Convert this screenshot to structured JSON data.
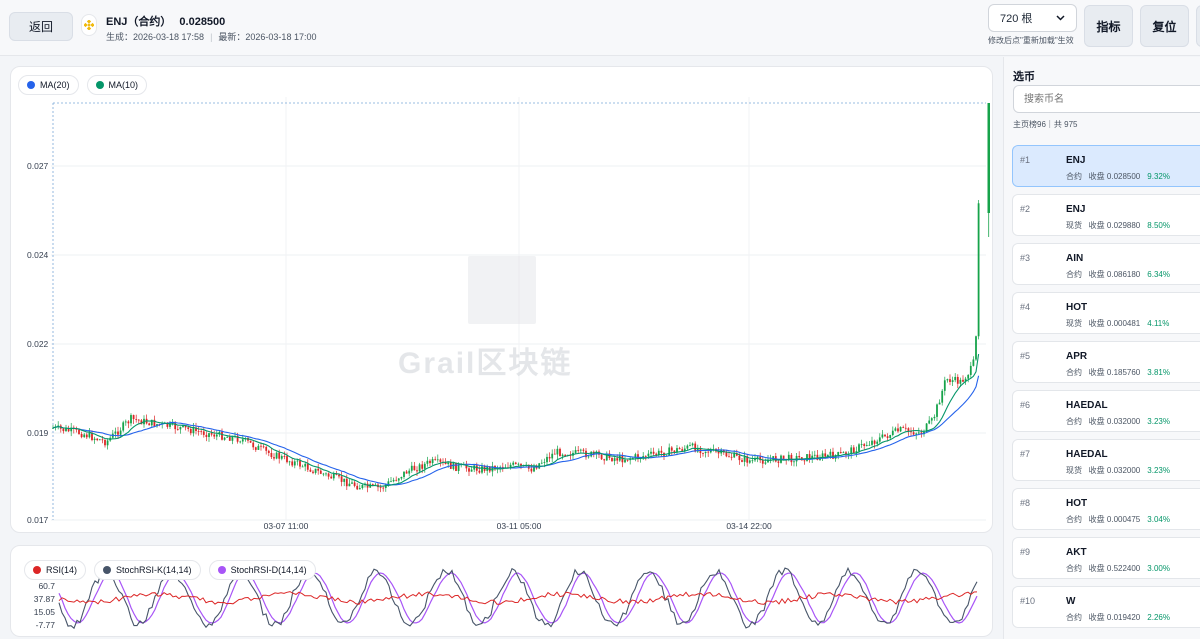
{
  "header": {
    "back_label": "返回",
    "coin_title": "ENJ（合约）",
    "coin_price": "0.028500",
    "generated": "生成：2026-03-18 17:58",
    "latest": "最新：2026-03-18 17:00",
    "bars_value": "720 根",
    "bars_hint": "修改后点\"重新加载\"生效",
    "indicator_label": "指标",
    "reset_label": "复位"
  },
  "main_chart": {
    "legend": [
      {
        "name": "MA(20)",
        "color": "#2563eb"
      },
      {
        "name": "MA(10)",
        "color": "#059669"
      }
    ],
    "y_ticks": [
      "0.027",
      "0.024",
      "0.022",
      "0.019",
      "0.017"
    ],
    "x_ticks": [
      "03-07 11:00",
      "03-11 05:00",
      "03-14 22:00"
    ],
    "watermark": "Grail区块链",
    "up_color": "#16a34a",
    "down_color": "#dc2626"
  },
  "indicator_chart": {
    "legend": [
      {
        "name": "RSI(14)",
        "color": "#dc2626"
      },
      {
        "name": "StochRSI-K(14,14)",
        "color": "#475569"
      },
      {
        "name": "StochRSI-D(14,14)",
        "color": "#a855f7"
      }
    ],
    "y_ticks": [
      "60.7",
      "37.87",
      "15.05",
      "-7.77"
    ]
  },
  "sidebar": {
    "title": "选币",
    "search_placeholder": "搜索币名",
    "count_text": "主页榜96｜共 975",
    "items": [
      {
        "rank": "#1",
        "symbol": "ENJ",
        "type": "合约",
        "close": "收盘 0.028500",
        "pct": "9.32%",
        "active": true
      },
      {
        "rank": "#2",
        "symbol": "ENJ",
        "type": "现货",
        "close": "收盘 0.029880",
        "pct": "8.50%"
      },
      {
        "rank": "#3",
        "symbol": "AIN",
        "type": "合约",
        "close": "收盘 0.086180",
        "pct": "6.34%"
      },
      {
        "rank": "#4",
        "symbol": "HOT",
        "type": "现货",
        "close": "收盘 0.000481",
        "pct": "4.11%"
      },
      {
        "rank": "#5",
        "symbol": "APR",
        "type": "合约",
        "close": "收盘 0.185760",
        "pct": "3.81%"
      },
      {
        "rank": "#6",
        "symbol": "HAEDAL",
        "type": "合约",
        "close": "收盘 0.032000",
        "pct": "3.23%"
      },
      {
        "rank": "#7",
        "symbol": "HAEDAL",
        "type": "现货",
        "close": "收盘 0.032000",
        "pct": "3.23%"
      },
      {
        "rank": "#8",
        "symbol": "HOT",
        "type": "合约",
        "close": "收盘 0.000475",
        "pct": "3.04%"
      },
      {
        "rank": "#9",
        "symbol": "AKT",
        "type": "合约",
        "close": "收盘 0.522400",
        "pct": "3.00%"
      },
      {
        "rank": "#10",
        "symbol": "W",
        "type": "合约",
        "close": "收盘 0.019420",
        "pct": "2.26%"
      }
    ]
  }
}
